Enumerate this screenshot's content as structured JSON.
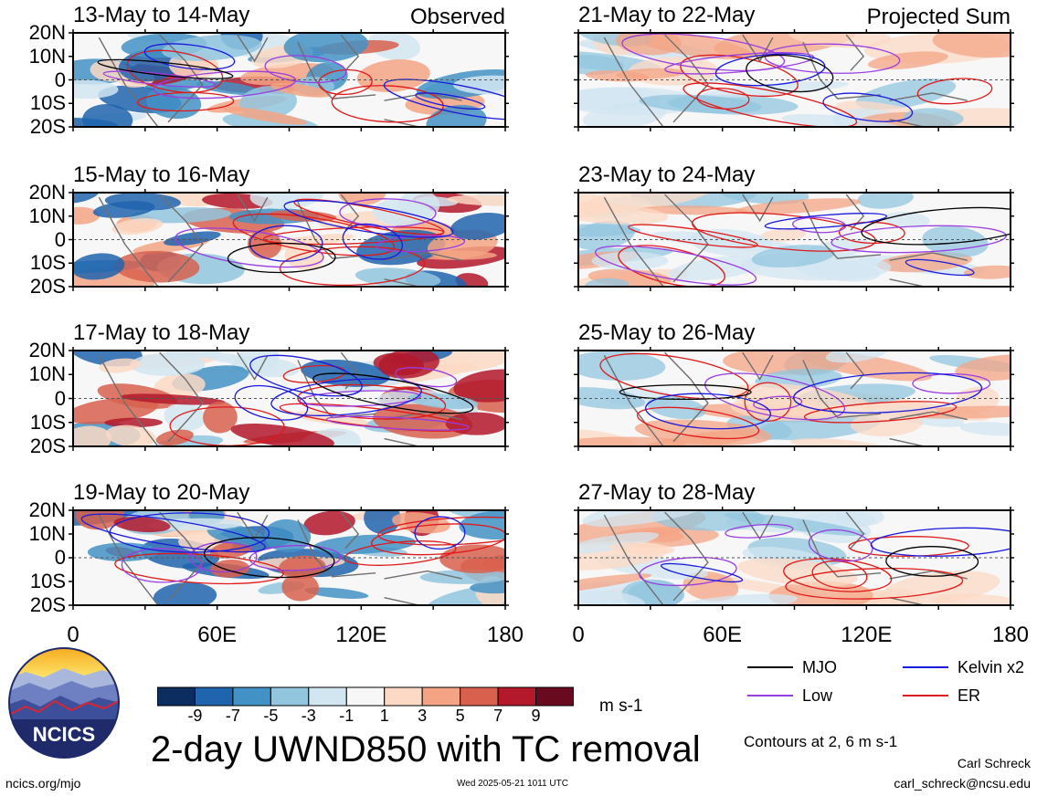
{
  "chart_data": {
    "type": "heatmap",
    "title": "2-day UWND850 with TC removal",
    "units": "m s-1",
    "column_labels": [
      "Observed",
      "Projected Sum"
    ],
    "x_ticks": [
      "0",
      "60E",
      "120E",
      "180"
    ],
    "y_ticks": [
      "20N",
      "10N",
      "0",
      "10S",
      "20S"
    ],
    "xlim": [
      0,
      180
    ],
    "ylim": [
      -20,
      20
    ],
    "colorbar": {
      "ticks": [
        "-9",
        "-7",
        "-5",
        "-3",
        "-1",
        "1",
        "3",
        "5",
        "7",
        "9"
      ],
      "colors": [
        "#0b2d60",
        "#2064ae",
        "#4392c6",
        "#92c6df",
        "#d2e6f1",
        "#f7f7f7",
        "#fcd9c4",
        "#f4a484",
        "#d8604d",
        "#b3182b",
        "#6a0a20"
      ]
    },
    "panels_observed": [
      "13-May to 14-May",
      "15-May to 16-May",
      "17-May to 18-May",
      "19-May to 20-May"
    ],
    "panels_projected": [
      "21-May to 22-May",
      "23-May to 24-May",
      "25-May to 26-May",
      "27-May to 28-May"
    ],
    "legend": [
      {
        "name": "MJO",
        "color": "#000000"
      },
      {
        "name": "Kelvin x2",
        "color": "#1a1adc"
      },
      {
        "name": "Low",
        "color": "#9a3de0"
      },
      {
        "name": "ER",
        "color": "#e01a1a"
      }
    ],
    "contours_note": "Contours at 2, 6 m s-1"
  },
  "footer": {
    "logo_text": "NCICS",
    "url": "ncics.org/mjo",
    "timestamp": "Wed 2025-05-21 1011 UTC",
    "author": "Carl Schreck",
    "email": "carl_schreck@ncsu.edu"
  }
}
